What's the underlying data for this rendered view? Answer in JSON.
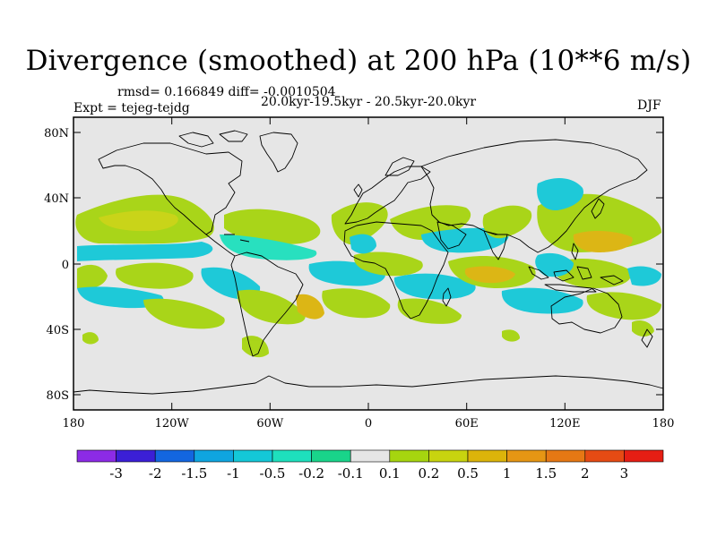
{
  "title": "Divergence (smoothed) at 200 hPa (10**6 m/s)",
  "stats_line": "rmsd= 0.166849 diff= -0.0010504",
  "period_line": "20.0kyr-19.5kyr - 20.5kyr-20.0kyr",
  "experiment_line": "Expt = tejeg-tejdg",
  "season": "DJF",
  "y_ticks": [
    "80N",
    "40N",
    "0",
    "40S",
    "80S"
  ],
  "x_ticks": [
    "180",
    "120W",
    "60W",
    "0",
    "60E",
    "120E",
    "180"
  ],
  "colorbar": {
    "colors": [
      "#8c2be6",
      "#3b1fd6",
      "#1366e0",
      "#0fa5e0",
      "#14c8d8",
      "#1ee0bd",
      "#19d48a",
      "#e6e6e6",
      "#a6d50f",
      "#c8d40f",
      "#dcb40a",
      "#e69614",
      "#e67814",
      "#e64b14",
      "#e61e14"
    ],
    "labels": [
      "-3",
      "-2",
      "-1.5",
      "-1",
      "-0.5",
      "-0.2",
      "-0.1",
      "0.1",
      "0.2",
      "0.5",
      "1",
      "1.5",
      "2",
      "3"
    ]
  },
  "colors": {
    "land_sea_bg": "#e6e6e6",
    "coast": "#000000"
  }
}
